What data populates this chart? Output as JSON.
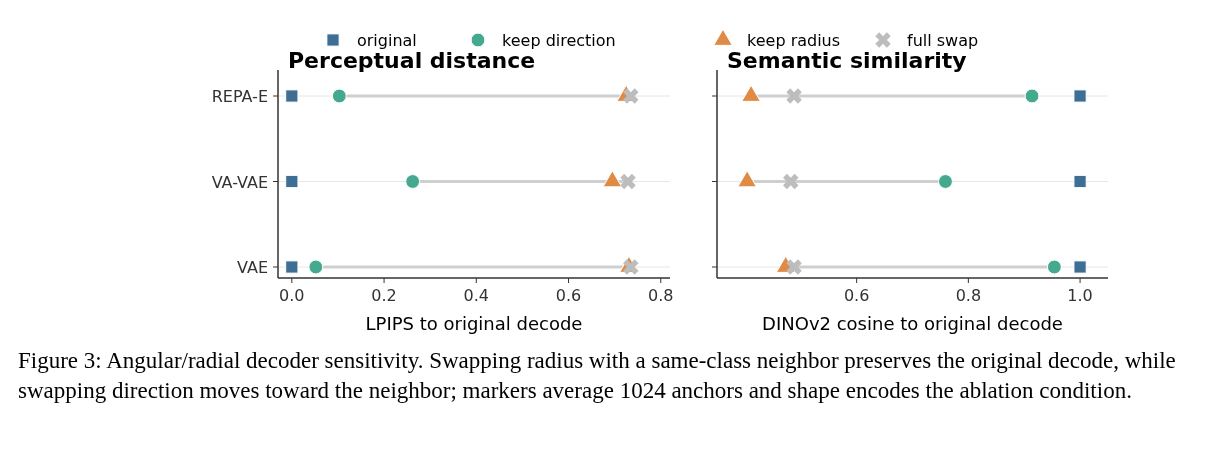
{
  "chart_data": [
    {
      "type": "scatter",
      "orientation": "horizontal",
      "title": "Perceptual distance",
      "xlabel": "LPIPS to original decode",
      "categories": [
        "REPA-E",
        "VA-VAE",
        "VAE"
      ],
      "xlim": [
        -0.03,
        0.82
      ],
      "xticks": [
        {
          "value": 0,
          "label": "0.0"
        },
        0.2,
        0.4,
        0.6,
        0.8
      ],
      "grid": "y",
      "legend": "top",
      "annotations": [
        "Figure 3: Angular/radial decoder sensitivity. Swapping radius with a same-class neighbor preserves the original decode, while swapping direction moves toward the neighbor; markers average 1024 anchors and shape encodes the ablation condition."
      ],
      "series": [
        {
          "name": "original",
          "color": "#3e6e94",
          "marker": "square",
          "values": [
            0,
            0,
            0
          ]
        },
        {
          "name": "keep direction",
          "color": "#44a98f",
          "marker": "circle",
          "values": [
            0.103,
            0.262,
            0.052
          ]
        },
        {
          "name": "keep radius",
          "color": "#e08b45",
          "marker": "triangle",
          "values": [
            0.725,
            0.695,
            0.731
          ]
        },
        {
          "name": "full swap",
          "color": "#bdbdbd",
          "marker": "cross",
          "values": [
            0.735,
            0.729,
            0.735
          ]
        }
      ]
    },
    {
      "type": "scatter",
      "orientation": "horizontal",
      "title": "Semantic similarity",
      "xlabel": "DINOv2 cosine to original decode",
      "xlim": [
        0.35,
        1.05
      ],
      "xticks": [
        0.6,
        0.8,
        {
          "value": 1,
          "label": "1.0"
        }
      ],
      "categories": [
        null,
        null,
        null
      ],
      "grid": "y",
      "tick_labels": "x",
      "series": [
        {
          "color": "#3e6e94",
          "marker": "square",
          "values": [
            1,
            1,
            1
          ]
        },
        {
          "color": "#44a98f",
          "marker": "circle",
          "values": [
            0.914,
            0.759,
            0.954
          ]
        },
        {
          "color": "#e08b45",
          "marker": "triangle",
          "values": [
            0.411,
            0.404,
            0.473
          ]
        },
        {
          "color": "#bdbdbd",
          "marker": "cross",
          "values": [
            0.488,
            0.482,
            0.488
          ]
        }
      ]
    }
  ]
}
